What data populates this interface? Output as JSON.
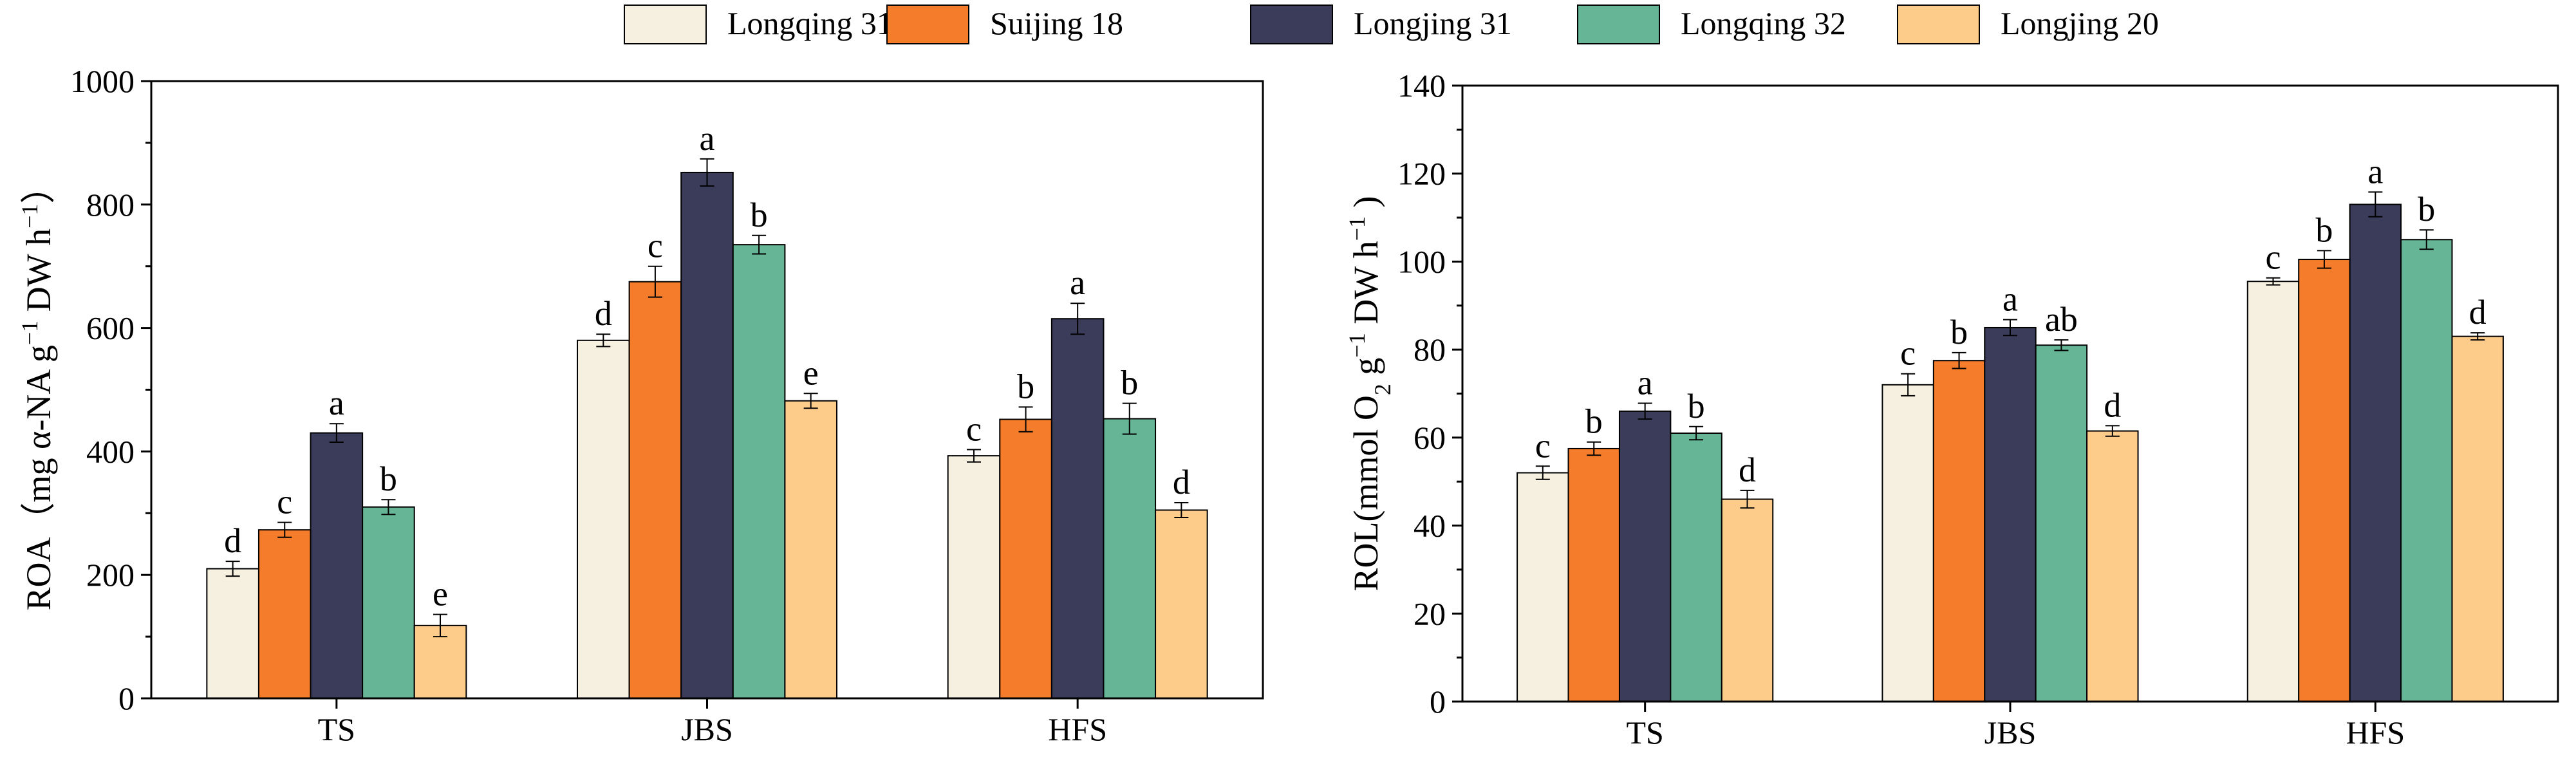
{
  "legend": [
    "Longqing 31",
    "Suijing 18",
    "Longjing 31",
    "Longqing 32",
    "Longjing 20"
  ],
  "colors": [
    "#F5F0DF",
    "#F47C2A",
    "#3A3C59",
    "#66B597",
    "#FDCB8A"
  ],
  "chart_data": [
    {
      "type": "bar",
      "ylabel_main": "ROA（mg α-NA g",
      "ylabel_sup": "−1",
      "ylabel_tail": " DW h",
      "ylabel_sup2": "−1",
      "ylabel_close": "）",
      "ylim": [
        0,
        1000
      ],
      "yticks": [
        0,
        200,
        400,
        600,
        800,
        1000
      ],
      "categories": [
        "TS",
        "JBS",
        "HFS"
      ],
      "series": [
        {
          "name": "Longqing 31",
          "values": [
            210,
            580,
            393
          ],
          "errors": [
            12,
            10,
            10
          ],
          "letters": [
            "d",
            "d",
            "c"
          ]
        },
        {
          "name": "Suijing 18",
          "values": [
            273,
            675,
            452
          ],
          "errors": [
            12,
            25,
            20
          ],
          "letters": [
            "c",
            "c",
            "b"
          ]
        },
        {
          "name": "Longjing 31",
          "values": [
            430,
            852,
            615
          ],
          "errors": [
            15,
            22,
            25
          ],
          "letters": [
            "a",
            "a",
            "a"
          ]
        },
        {
          "name": "Longqing 32",
          "values": [
            310,
            735,
            453
          ],
          "errors": [
            12,
            15,
            25
          ],
          "letters": [
            "b",
            "b",
            "b"
          ]
        },
        {
          "name": "Longjing 20",
          "values": [
            118,
            482,
            305
          ],
          "errors": [
            18,
            12,
            12
          ],
          "letters": [
            "e",
            "e",
            "d"
          ]
        }
      ]
    },
    {
      "type": "bar",
      "ylabel_main": "ROL(mmol O",
      "ylabel_sub": "2",
      "ylabel_tail": " g",
      "ylabel_sup": "−1",
      "ylabel_tail2": " DW h",
      "ylabel_sup2": "−1",
      "ylabel_close": " )",
      "ylim": [
        0,
        140
      ],
      "yticks": [
        0,
        20,
        40,
        60,
        80,
        100,
        120,
        140
      ],
      "categories": [
        "TS",
        "JBS",
        "HFS"
      ],
      "series": [
        {
          "name": "Longqing 31",
          "values": [
            52,
            72,
            95.5
          ],
          "errors": [
            1.5,
            2.5,
            0.8
          ],
          "letters": [
            "c",
            "c",
            "c"
          ]
        },
        {
          "name": "Suijing 18",
          "values": [
            57.5,
            77.5,
            100.5
          ],
          "errors": [
            1.5,
            1.8,
            2.0
          ],
          "letters": [
            "b",
            "b",
            "b"
          ]
        },
        {
          "name": "Longjing 31",
          "values": [
            66,
            85,
            113
          ],
          "errors": [
            1.8,
            1.8,
            2.8
          ],
          "letters": [
            "a",
            "a",
            "a"
          ]
        },
        {
          "name": "Longqing 32",
          "values": [
            61,
            81,
            105
          ],
          "errors": [
            1.5,
            1.2,
            2.2
          ],
          "letters": [
            "b",
            "ab",
            "b"
          ]
        },
        {
          "name": "Longjing 20",
          "values": [
            46,
            61.5,
            83
          ],
          "errors": [
            2.0,
            1.2,
            0.8
          ],
          "letters": [
            "d",
            "d",
            "d"
          ]
        }
      ]
    }
  ]
}
